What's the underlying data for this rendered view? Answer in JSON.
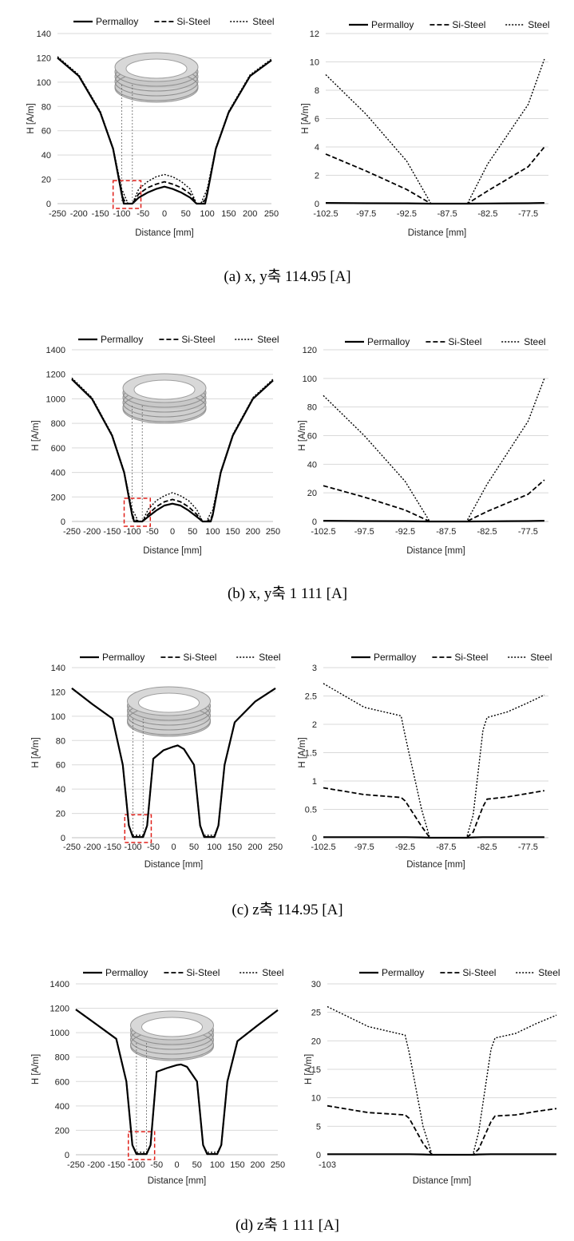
{
  "legend": [
    "Permalloy",
    "Si-Steel",
    "Steel"
  ],
  "colors": {
    "line": "#000000",
    "grid": "#d9d9d9",
    "axis": "#bfbfbf",
    "box": "#e0201a",
    "ring": "#bbbbbb"
  },
  "captions": [
    "(a)  x,  y축  114.95  [A]",
    "(b)  x,  y축  1  111  [A]",
    "(c)  z축  114.95  [A]",
    "(d)  z축  1  111  [A]"
  ],
  "chart_data": [
    {
      "id": "a-left",
      "type": "line",
      "xlabel": "Distance [mm]",
      "ylabel": "H [A/m]",
      "xlim": [
        -250,
        250
      ],
      "ylim": [
        0,
        140
      ],
      "xticks": [
        -250,
        -200,
        -150,
        -100,
        -50,
        0,
        50,
        100,
        150,
        200,
        250
      ],
      "yticks": [
        0,
        20,
        40,
        60,
        80,
        100,
        120,
        140
      ],
      "x": [
        -250,
        -200,
        -150,
        -120,
        -100,
        -95,
        -85,
        -75,
        -60,
        -40,
        -20,
        0,
        20,
        40,
        60,
        75,
        85,
        95,
        100,
        120,
        150,
        200,
        250
      ],
      "series": [
        {
          "name": "Permalloy",
          "values": [
            120,
            105,
            75,
            45,
            8,
            0,
            0,
            0,
            5,
            9,
            12,
            14,
            12,
            9,
            5,
            0,
            0,
            0,
            8,
            45,
            75,
            105,
            118
          ]
        },
        {
          "name": "Si-Steel",
          "values": [
            120,
            105,
            75,
            45,
            9,
            3,
            0,
            0,
            8,
            13,
            16,
            18,
            16,
            13,
            8,
            0,
            0,
            3,
            9,
            45,
            75,
            105,
            118
          ]
        },
        {
          "name": "Steel",
          "values": [
            121,
            106,
            76,
            46,
            12,
            8,
            0,
            0,
            12,
            18,
            22,
            24,
            22,
            18,
            12,
            0,
            0,
            8,
            12,
            46,
            76,
            106,
            119
          ]
        }
      ]
    },
    {
      "id": "a-right",
      "type": "line",
      "xlabel": "Distance [mm]",
      "ylabel": "H [A/m]",
      "xlim": [
        -102.5,
        -75
      ],
      "ylim": [
        0,
        12
      ],
      "xticks": [
        -102.5,
        -97.5,
        -92.5,
        -87.5,
        -82.5,
        -77.5
      ],
      "yticks": [
        0,
        2,
        4,
        6,
        8,
        10,
        12
      ],
      "x": [
        -102.5,
        -97.5,
        -92.5,
        -89.5,
        -85,
        -82.5,
        -77.5,
        -75.5
      ],
      "series": [
        {
          "name": "Permalloy",
          "values": [
            0.05,
            0.03,
            0.02,
            0,
            0,
            0.01,
            0.03,
            0.05
          ]
        },
        {
          "name": "Si-Steel",
          "values": [
            3.5,
            2.3,
            1.0,
            0,
            0,
            0.9,
            2.6,
            4.0
          ]
        },
        {
          "name": "Steel",
          "values": [
            9.1,
            6.3,
            3.0,
            0,
            0,
            2.8,
            7.0,
            10.2
          ]
        }
      ]
    },
    {
      "id": "b-left",
      "type": "line",
      "xlabel": "Distance [mm]",
      "ylabel": "H [A/m]",
      "xlim": [
        -250,
        250
      ],
      "ylim": [
        0,
        1400
      ],
      "xticks": [
        -250,
        -200,
        -150,
        -100,
        -50,
        0,
        50,
        100,
        150,
        200,
        250
      ],
      "yticks": [
        0,
        200,
        400,
        600,
        800,
        1000,
        1200,
        1400
      ],
      "x": [
        -250,
        -200,
        -150,
        -120,
        -100,
        -95,
        -85,
        -75,
        -60,
        -40,
        -20,
        0,
        20,
        40,
        60,
        75,
        85,
        95,
        100,
        120,
        150,
        200,
        250
      ],
      "series": [
        {
          "name": "Permalloy",
          "values": [
            1160,
            1000,
            700,
            400,
            50,
            0,
            0,
            0,
            40,
            90,
            130,
            145,
            130,
            90,
            40,
            0,
            0,
            0,
            50,
            400,
            700,
            1000,
            1150
          ]
        },
        {
          "name": "Si-Steel",
          "values": [
            1160,
            1000,
            700,
            400,
            60,
            20,
            0,
            0,
            60,
            120,
            160,
            180,
            160,
            120,
            60,
            0,
            0,
            20,
            60,
            400,
            700,
            1000,
            1150
          ]
        },
        {
          "name": "Steel",
          "values": [
            1170,
            1010,
            710,
            410,
            90,
            70,
            0,
            0,
            100,
            170,
            210,
            235,
            210,
            170,
            100,
            0,
            0,
            70,
            90,
            410,
            710,
            1010,
            1160
          ]
        }
      ]
    },
    {
      "id": "b-right",
      "type": "line",
      "xlabel": "Distance [mm]",
      "ylabel": "H [A/m]",
      "xlim": [
        -102.5,
        -75
      ],
      "ylim": [
        0,
        120
      ],
      "xticks": [
        -102.5,
        -97.5,
        -92.5,
        -87.5,
        -82.5,
        -77.5
      ],
      "yticks": [
        0,
        20,
        40,
        60,
        80,
        100,
        120
      ],
      "x": [
        -102.5,
        -97.5,
        -92.5,
        -89.5,
        -85,
        -82.5,
        -77.5,
        -75.5
      ],
      "series": [
        {
          "name": "Permalloy",
          "values": [
            0.5,
            0.3,
            0.2,
            0,
            0,
            0.1,
            0.3,
            0.5
          ]
        },
        {
          "name": "Si-Steel",
          "values": [
            25,
            17,
            8,
            0,
            0,
            7,
            19,
            29
          ]
        },
        {
          "name": "Steel",
          "values": [
            88,
            60,
            28,
            0,
            0,
            26,
            70,
            100
          ]
        }
      ]
    },
    {
      "id": "c-left",
      "type": "line",
      "xlabel": "Distance [mm]",
      "ylabel": "H [A/m]",
      "xlim": [
        -250,
        250
      ],
      "ylim": [
        0,
        140
      ],
      "xticks": [
        -250,
        -200,
        -150,
        -100,
        -50,
        0,
        50,
        100,
        150,
        200,
        250
      ],
      "yticks": [
        0,
        20,
        40,
        60,
        80,
        100,
        120,
        140
      ],
      "x": [
        -250,
        -200,
        -150,
        -125,
        -110,
        -100,
        -90,
        -75,
        -65,
        -50,
        -25,
        0,
        10,
        25,
        50,
        65,
        75,
        90,
        100,
        110,
        125,
        150,
        200,
        250
      ],
      "series": [
        {
          "name": "Permalloy",
          "values": [
            123,
            110,
            98,
            60,
            10,
            0.5,
            0.5,
            0.5,
            10,
            65,
            72,
            75,
            76,
            73,
            60,
            10,
            0.5,
            0.5,
            0.5,
            10,
            60,
            95,
            112,
            123
          ]
        },
        {
          "name": "Si-Steel",
          "values": [
            123,
            110,
            98,
            60,
            10,
            0.7,
            0.7,
            0.7,
            10,
            65,
            72,
            75,
            76,
            73,
            60,
            10,
            0.7,
            0.7,
            0.7,
            10,
            60,
            95,
            112,
            123
          ]
        },
        {
          "name": "Steel",
          "values": [
            123,
            110,
            98,
            60,
            10,
            2,
            2,
            2,
            10,
            65,
            72,
            75,
            76,
            73,
            60,
            10,
            2,
            2,
            2,
            10,
            60,
            95,
            112,
            123
          ]
        }
      ]
    },
    {
      "id": "c-right",
      "type": "line",
      "xlabel": "Distance [mm]",
      "ylabel": "H [A/m]",
      "xlim": [
        -102.5,
        -75
      ],
      "ylim": [
        0,
        3
      ],
      "xticks": [
        -102.5,
        -97.5,
        -92.5,
        -87.5,
        -82.5,
        -77.5
      ],
      "yticks": [
        0,
        0.5,
        1,
        1.5,
        2,
        2.5,
        3
      ],
      "x": [
        -102.5,
        -97.5,
        -93,
        -92.5,
        -90.5,
        -89.5,
        -85,
        -84.2,
        -83,
        -82.5,
        -80,
        -77.5,
        -75.5
      ],
      "series": [
        {
          "name": "Permalloy",
          "values": [
            0.01,
            0.01,
            0.01,
            0.01,
            0.005,
            0,
            0,
            0.005,
            0.01,
            0.01,
            0.01,
            0.01,
            0.01
          ]
        },
        {
          "name": "Si-Steel",
          "values": [
            0.88,
            0.76,
            0.71,
            0.65,
            0.2,
            0,
            0,
            0.1,
            0.55,
            0.68,
            0.72,
            0.78,
            0.83
          ]
        },
        {
          "name": "Steel",
          "values": [
            2.72,
            2.3,
            2.15,
            1.8,
            0.5,
            0,
            0,
            0.4,
            1.9,
            2.12,
            2.22,
            2.38,
            2.52
          ]
        }
      ]
    },
    {
      "id": "d-left",
      "type": "line",
      "xlabel": "Distance [mm]",
      "ylabel": "H [A/m]",
      "xlim": [
        -250,
        250
      ],
      "ylim": [
        0,
        1400
      ],
      "xticks": [
        -250,
        -200,
        -150,
        -100,
        -50,
        0,
        50,
        100,
        150,
        200,
        250
      ],
      "yticks": [
        0,
        200,
        400,
        600,
        800,
        1000,
        1200,
        1400
      ],
      "x": [
        -250,
        -200,
        -150,
        -125,
        -110,
        -100,
        -90,
        -75,
        -65,
        -50,
        -25,
        0,
        10,
        25,
        50,
        65,
        75,
        90,
        100,
        110,
        125,
        150,
        200,
        250
      ],
      "series": [
        {
          "name": "Permalloy",
          "values": [
            1190,
            1070,
            950,
            600,
            80,
            5,
            5,
            5,
            80,
            680,
            710,
            735,
            740,
            720,
            600,
            80,
            5,
            5,
            5,
            80,
            600,
            930,
            1060,
            1185
          ]
        },
        {
          "name": "Si-Steel",
          "values": [
            1190,
            1070,
            950,
            600,
            80,
            7,
            7,
            7,
            80,
            680,
            710,
            735,
            740,
            720,
            600,
            80,
            7,
            7,
            7,
            80,
            600,
            930,
            1060,
            1185
          ]
        },
        {
          "name": "Steel",
          "values": [
            1190,
            1070,
            950,
            600,
            80,
            20,
            20,
            20,
            80,
            680,
            710,
            735,
            740,
            720,
            600,
            80,
            20,
            20,
            20,
            80,
            600,
            930,
            1060,
            1185
          ]
        }
      ]
    },
    {
      "id": "d-right",
      "type": "line",
      "xlabel": "Distance [mm]",
      "ylabel": "H [A/m]",
      "xlim": [
        -103,
        -75
      ],
      "ylim": [
        0,
        30
      ],
      "xticks": [
        -103
      ],
      "yticks": [
        0,
        5,
        10,
        15,
        20,
        25,
        30
      ],
      "x": [
        -103,
        -98,
        -93.5,
        -93,
        -91.3,
        -90.2,
        -85.2,
        -84.5,
        -83,
        -82.5,
        -80,
        -77.5,
        -75
      ],
      "series": [
        {
          "name": "Permalloy",
          "values": [
            0.1,
            0.1,
            0.1,
            0.1,
            0.05,
            0,
            0,
            0.05,
            0.1,
            0.1,
            0.1,
            0.1,
            0.1
          ]
        },
        {
          "name": "Si-Steel",
          "values": [
            8.6,
            7.4,
            7.0,
            6.4,
            2.0,
            0,
            0,
            1.0,
            5.8,
            6.8,
            7.0,
            7.6,
            8.1
          ]
        },
        {
          "name": "Steel",
          "values": [
            26,
            22.5,
            21.0,
            18.0,
            5.0,
            0,
            0,
            4.0,
            18.5,
            20.5,
            21.3,
            23,
            24.5
          ]
        }
      ]
    }
  ]
}
